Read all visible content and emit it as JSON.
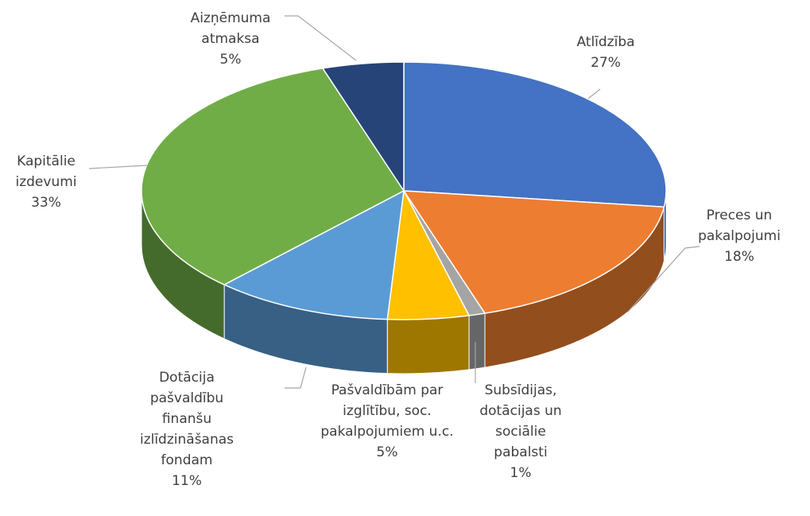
{
  "chart_data": {
    "type": "pie",
    "categories": [
      "Atlīdzība",
      "Preces un pakalpojumi",
      "Subsīdijas, dotācijas un sociālie pabalsti",
      "Pašvaldībām par izglītību, soc. pakalpojumiem u.c.",
      "Dotācija pašvaldību finanšu izlīdzināšanas fondam",
      "Kapitālie izdevumi",
      "Aizņēmuma atmaksa"
    ],
    "values": [
      27,
      18,
      1,
      5,
      11,
      33,
      5
    ],
    "value_labels": [
      "27%",
      "18%",
      "1%",
      "5%",
      "11%",
      "33%",
      "5%"
    ],
    "colors": [
      "#4472c4",
      "#ed7d31",
      "#a5a5a5",
      "#ffc000",
      "#5b9bd5",
      "#70ad47",
      "#264478"
    ]
  }
}
